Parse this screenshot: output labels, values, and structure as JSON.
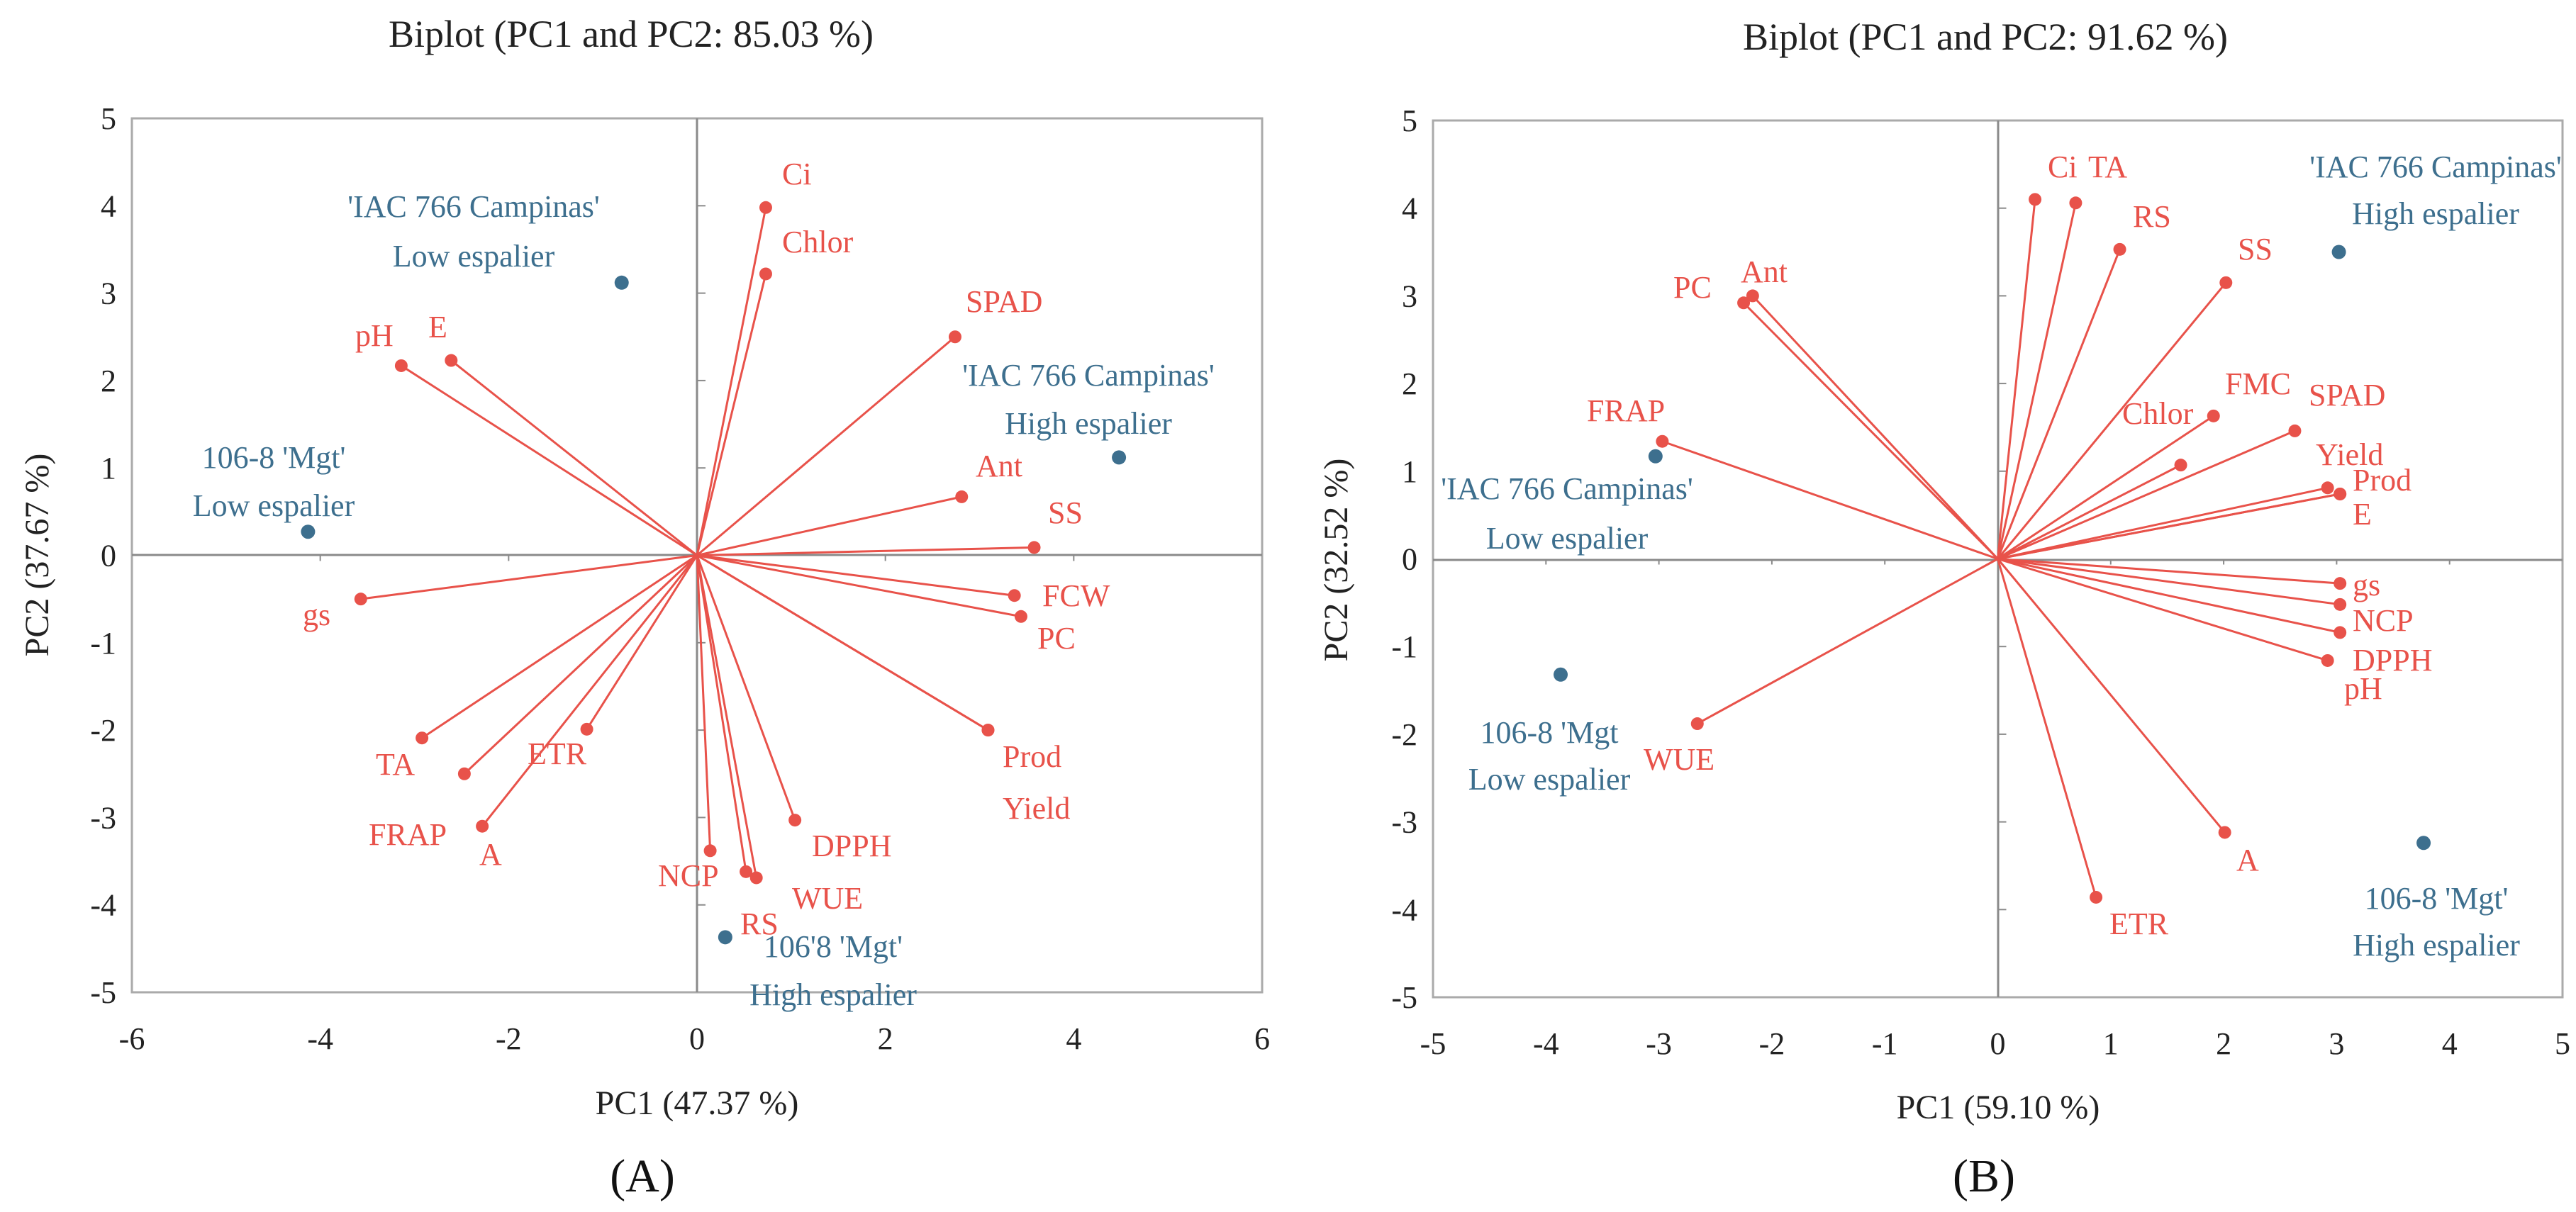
{
  "colors": {
    "variable": "#e8524a",
    "observation": "#3d6f8e",
    "frame": "#aaaaaa",
    "axis": "#8a8a8a"
  },
  "chart_data": [
    {
      "type": "scatter",
      "subtype": "biplot",
      "panel_label": "(A)",
      "title": "Biplot (PC1 and PC2: 85.03 %)",
      "xlabel": "PC1 (47.37 %)",
      "ylabel": "PC2 (37.67 %)",
      "xlim": [
        -6,
        6
      ],
      "ylim": [
        -5,
        5
      ],
      "xticks": [
        -6,
        -4,
        -2,
        0,
        2,
        4,
        6
      ],
      "yticks": [
        -5,
        -4,
        -3,
        -2,
        -1,
        0,
        1,
        2,
        3,
        4,
        5
      ],
      "grid": false,
      "variables": [
        {
          "name": "Ci",
          "x": 0.73,
          "y": 3.98
        },
        {
          "name": "Chlor",
          "x": 0.73,
          "y": 3.22
        },
        {
          "name": "SPAD",
          "x": 2.74,
          "y": 2.5
        },
        {
          "name": "Ant",
          "x": 2.81,
          "y": 0.67
        },
        {
          "name": "SS",
          "x": 3.58,
          "y": 0.09
        },
        {
          "name": "FCW",
          "x": 3.37,
          "y": -0.46
        },
        {
          "name": "PC",
          "x": 3.44,
          "y": -0.7
        },
        {
          "name": "Prod",
          "x": 3.09,
          "y": -2.0
        },
        {
          "name": "Yield",
          "x": 3.09,
          "y": -2.0
        },
        {
          "name": "DPPH",
          "x": 1.04,
          "y": -3.03
        },
        {
          "name": "WUE",
          "x": 0.63,
          "y": -3.69
        },
        {
          "name": "RS",
          "x": 0.52,
          "y": -3.62
        },
        {
          "name": "NCP",
          "x": 0.14,
          "y": -3.38
        },
        {
          "name": "ETR",
          "x": -1.17,
          "y": -1.99
        },
        {
          "name": "A",
          "x": -2.28,
          "y": -3.1
        },
        {
          "name": "FRAP",
          "x": -2.47,
          "y": -2.5
        },
        {
          "name": "TA",
          "x": -2.92,
          "y": -2.09
        },
        {
          "name": "gs",
          "x": -3.57,
          "y": -0.5
        },
        {
          "name": "pH",
          "x": -3.14,
          "y": 2.17
        },
        {
          "name": "E",
          "x": -2.61,
          "y": 2.23
        }
      ],
      "observations": [
        {
          "line1": "'IAC 766 Campinas'",
          "line2": "Low espalier",
          "x": -0.8,
          "y": 3.12
        },
        {
          "line1": "'IAC 766 Campinas'",
          "line2": "High espalier",
          "x": 4.48,
          "y": 1.12
        },
        {
          "line1": "106-8 'Mgt'",
          "line2": "Low espalier",
          "x": -4.13,
          "y": 0.27
        },
        {
          "line1": "106'8 'Mgt'",
          "line2": "High espalier",
          "x": 0.3,
          "y": -4.37
        }
      ]
    },
    {
      "type": "scatter",
      "subtype": "biplot",
      "panel_label": "(B)",
      "title": "Biplot (PC1 and PC2: 91.62 %)",
      "xlabel": "PC1 (59.10 %)",
      "ylabel": "PC2 (32.52 %)",
      "xlim": [
        -5,
        5
      ],
      "ylim": [
        -5,
        5
      ],
      "xticks": [
        -5,
        -4,
        -3,
        -2,
        -1,
        0,
        1,
        2,
        3,
        4,
        5
      ],
      "yticks": [
        -5,
        -4,
        -3,
        -2,
        -1,
        0,
        1,
        2,
        3,
        4,
        5
      ],
      "grid": false,
      "variables": [
        {
          "name": "Ci",
          "x": 0.33,
          "y": 4.1
        },
        {
          "name": "TA",
          "x": 0.69,
          "y": 4.06
        },
        {
          "name": "RS",
          "x": 1.08,
          "y": 3.53
        },
        {
          "name": "SS",
          "x": 2.02,
          "y": 3.15
        },
        {
          "name": "FMC",
          "x": 1.91,
          "y": 1.63
        },
        {
          "name": "Chlor",
          "x": 1.62,
          "y": 1.07
        },
        {
          "name": "SPAD",
          "x": 2.63,
          "y": 1.46
        },
        {
          "name": "Yield",
          "x": 2.92,
          "y": 0.81
        },
        {
          "name": "Prod",
          "x": 3.03,
          "y": 0.74
        },
        {
          "name": "E",
          "x": 3.03,
          "y": 0.74
        },
        {
          "name": "gs",
          "x": 3.03,
          "y": -0.28
        },
        {
          "name": "NCP",
          "x": 3.03,
          "y": -0.52
        },
        {
          "name": "DPPH",
          "x": 3.03,
          "y": -0.84
        },
        {
          "name": "pH",
          "x": 2.92,
          "y": -1.16
        },
        {
          "name": "A",
          "x": 2.01,
          "y": -3.12
        },
        {
          "name": "ETR",
          "x": 0.87,
          "y": -3.86
        },
        {
          "name": "WUE",
          "x": -2.66,
          "y": -1.88
        },
        {
          "name": "FRAP",
          "x": -2.97,
          "y": 1.34
        },
        {
          "name": "PC",
          "x": -2.25,
          "y": 2.92
        },
        {
          "name": "Ant",
          "x": -2.17,
          "y": 3.0
        }
      ],
      "observations": [
        {
          "line1": "'IAC 766 Campinas'",
          "line2": "High espalier",
          "x": 3.02,
          "y": 3.5
        },
        {
          "line1": "'IAC 766 Campinas'",
          "line2": "Low espalier",
          "x": -3.03,
          "y": 1.17
        },
        {
          "line1": "106-8 'Mgt",
          "line2": "Low espalier",
          "x": -3.87,
          "y": -1.32
        },
        {
          "line1": "106-8 'Mgt'",
          "line2": "High espalier",
          "x": 3.77,
          "y": -3.24
        }
      ]
    }
  ]
}
